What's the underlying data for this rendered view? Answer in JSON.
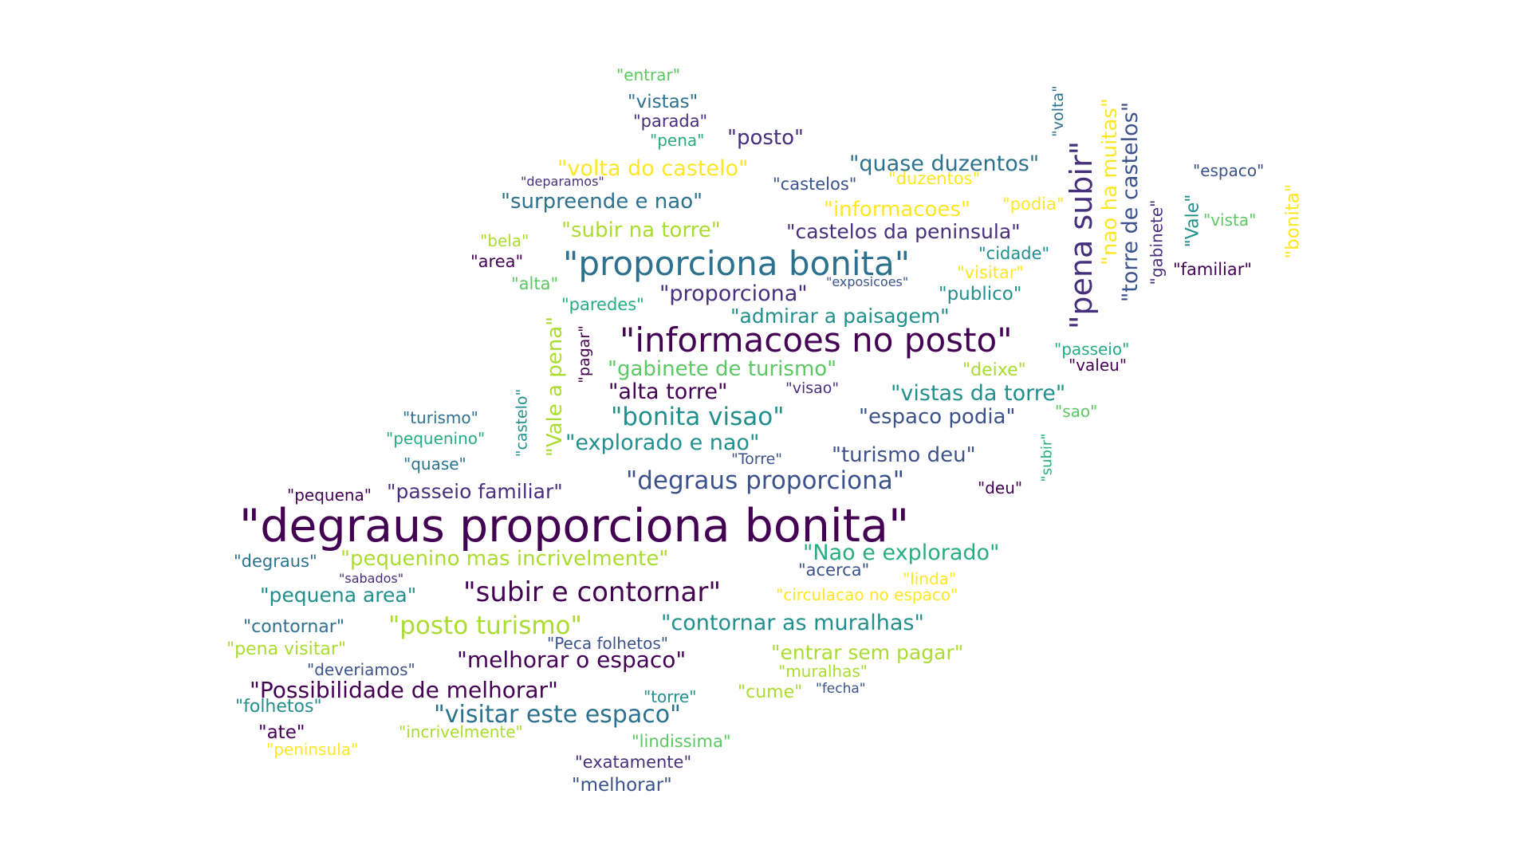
{
  "palette": [
    "#440154",
    "#472f7d",
    "#3b528b",
    "#2c718e",
    "#21908d",
    "#27ad81",
    "#5cc863",
    "#aadc32",
    "#fde725"
  ],
  "words": [
    {
      "text": "\"degraus proporciona bonita\"",
      "color": "#440154"
    },
    {
      "text": "\"informacoes no posto\"",
      "color": "#440154"
    },
    {
      "text": "\"proporciona bonita\"",
      "color": "#2c718e"
    },
    {
      "text": "\"pena subir\"",
      "color": "#472f7d"
    },
    {
      "text": "\"subir e contornar\"",
      "color": "#440154"
    },
    {
      "text": "\"degraus proporciona\"",
      "color": "#3b528b"
    },
    {
      "text": "\"bonita visao\"",
      "color": "#21908d"
    },
    {
      "text": "\"posto turismo\"",
      "color": "#aadc32"
    },
    {
      "text": "\"torre de castelos\"",
      "color": "#3b528b"
    },
    {
      "text": "\"nao ha muitas\"",
      "color": "#fde725"
    },
    {
      "text": "\"Vale a pena\"",
      "color": "#aadc32"
    },
    {
      "text": "\"volta do castelo\"",
      "color": "#fde725"
    },
    {
      "text": "\"quase duzentos\"",
      "color": "#2c718e"
    },
    {
      "text": "\"surpreende e nao\"",
      "color": "#2c718e"
    },
    {
      "text": "\"informacoes\"",
      "color": "#fde725"
    },
    {
      "text": "\"subir na torre\"",
      "color": "#aadc32"
    },
    {
      "text": "\"castelos da peninsula\"",
      "color": "#472f7d"
    },
    {
      "text": "\"proporciona\"",
      "color": "#472f7d"
    },
    {
      "text": "\"admirar a paisagem\"",
      "color": "#21908d"
    },
    {
      "text": "\"gabinete de turismo\"",
      "color": "#5cc863"
    },
    {
      "text": "\"alta torre\"",
      "color": "#440154"
    },
    {
      "text": "\"vistas da torre\"",
      "color": "#21908d"
    },
    {
      "text": "\"espaco podia\"",
      "color": "#3b528b"
    },
    {
      "text": "\"explorado e nao\"",
      "color": "#21908d"
    },
    {
      "text": "\"turismo deu\"",
      "color": "#3b528b"
    },
    {
      "text": "\"passeio familiar\"",
      "color": "#472f7d"
    },
    {
      "text": "\"pequenino mas incrivelmente\"",
      "color": "#aadc32"
    },
    {
      "text": "\"Nao e explorado\"",
      "color": "#27ad81"
    },
    {
      "text": "\"pequena area\"",
      "color": "#21908d"
    },
    {
      "text": "\"contornar as muralhas\"",
      "color": "#21908d"
    },
    {
      "text": "\"melhorar o espaco\"",
      "color": "#440154"
    },
    {
      "text": "\"entrar sem pagar\"",
      "color": "#aadc32"
    },
    {
      "text": "\"Possibilidade de melhorar\"",
      "color": "#440154"
    },
    {
      "text": "\"visitar este espaco\"",
      "color": "#2c718e"
    },
    {
      "text": "\"entrar\"",
      "color": "#5cc863"
    },
    {
      "text": "\"vistas\"",
      "color": "#2c718e"
    },
    {
      "text": "\"parada\"",
      "color": "#472f7d"
    },
    {
      "text": "\"pena\"",
      "color": "#27ad81"
    },
    {
      "text": "\"posto\"",
      "color": "#472f7d"
    },
    {
      "text": "\"deparamos\"",
      "color": "#472f7d"
    },
    {
      "text": "\"castelos\"",
      "color": "#3b528b"
    },
    {
      "text": "\"duzentos\"",
      "color": "#fde725"
    },
    {
      "text": "\"podia\"",
      "color": "#fde725"
    },
    {
      "text": "\"bela\"",
      "color": "#aadc32"
    },
    {
      "text": "\"area\"",
      "color": "#440154"
    },
    {
      "text": "\"alta\"",
      "color": "#5cc863"
    },
    {
      "text": "\"paredes\"",
      "color": "#27ad81"
    },
    {
      "text": "\"exposicoes\"",
      "color": "#3b528b"
    },
    {
      "text": "\"cidade\"",
      "color": "#21908d"
    },
    {
      "text": "\"visitar\"",
      "color": "#fde725"
    },
    {
      "text": "\"publico\"",
      "color": "#21908d"
    },
    {
      "text": "\"volta\"",
      "color": "#2c718e"
    },
    {
      "text": "\"gabinete\"",
      "color": "#472f7d"
    },
    {
      "text": "\"Vale\"",
      "color": "#21908d"
    },
    {
      "text": "\"espaco\"",
      "color": "#3b528b"
    },
    {
      "text": "\"vista\"",
      "color": "#5cc863"
    },
    {
      "text": "\"bonita\"",
      "color": "#fde725"
    },
    {
      "text": "\"familiar\"",
      "color": "#440154"
    },
    {
      "text": "\"pagar\"",
      "color": "#440154"
    },
    {
      "text": "\"passeio\"",
      "color": "#27ad81"
    },
    {
      "text": "\"valeu\"",
      "color": "#440154"
    },
    {
      "text": "\"deixe\"",
      "color": "#aadc32"
    },
    {
      "text": "\"visao\"",
      "color": "#472f7d"
    },
    {
      "text": "\"castelo\"",
      "color": "#21908d"
    },
    {
      "text": "\"turismo\"",
      "color": "#2c718e"
    },
    {
      "text": "\"pequenino\"",
      "color": "#27ad81"
    },
    {
      "text": "\"quase\"",
      "color": "#2c718e"
    },
    {
      "text": "\"Torre\"",
      "color": "#3b528b"
    },
    {
      "text": "\"sao\"",
      "color": "#5cc863"
    },
    {
      "text": "\"subir\"",
      "color": "#27ad81"
    },
    {
      "text": "\"deu\"",
      "color": "#440154"
    },
    {
      "text": "\"pequena\"",
      "color": "#440154"
    },
    {
      "text": "\"degraus\"",
      "color": "#2c718e"
    },
    {
      "text": "\"sabados\"",
      "color": "#472f7d"
    },
    {
      "text": "\"acerca\"",
      "color": "#3b528b"
    },
    {
      "text": "\"linda\"",
      "color": "#fde725"
    },
    {
      "text": "\"circulacao no espaco\"",
      "color": "#fde725"
    },
    {
      "text": "\"contornar\"",
      "color": "#2c718e"
    },
    {
      "text": "\"Peca folhetos\"",
      "color": "#3b528b"
    },
    {
      "text": "\"pena visitar\"",
      "color": "#aadc32"
    },
    {
      "text": "\"deveriamos\"",
      "color": "#3b528b"
    },
    {
      "text": "\"muralhas\"",
      "color": "#aadc32"
    },
    {
      "text": "\"fecha\"",
      "color": "#3b528b"
    },
    {
      "text": "\"torre\"",
      "color": "#21908d"
    },
    {
      "text": "\"cume\"",
      "color": "#aadc32"
    },
    {
      "text": "\"folhetos\"",
      "color": "#21908d"
    },
    {
      "text": "\"ate\"",
      "color": "#440154"
    },
    {
      "text": "\"incrivelmente\"",
      "color": "#aadc32"
    },
    {
      "text": "\"lindissima\"",
      "color": "#5cc863"
    },
    {
      "text": "\"peninsula\"",
      "color": "#fde725"
    },
    {
      "text": "\"exatamente\"",
      "color": "#472f7d"
    },
    {
      "text": "\"melhorar\"",
      "color": "#3b528b"
    }
  ]
}
